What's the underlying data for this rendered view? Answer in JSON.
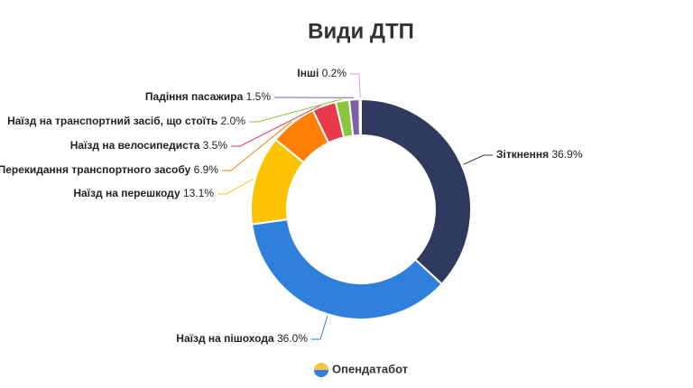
{
  "chart_data": {
    "type": "pie",
    "title": "Види ДТП",
    "categories": [
      "Зіткнення",
      "Наїзд на пішохода",
      "Наїзд на перешкоду",
      "Перекидання транспортного засобу",
      "Наїзд на велосипедиста",
      "Наїзд на транспортний засіб, що стоїть",
      "Падіння пасажира",
      "Інші"
    ],
    "values": [
      36.9,
      36.0,
      13.1,
      6.9,
      3.5,
      2.0,
      1.5,
      0.2
    ],
    "value_labels": [
      "36.9%",
      "36.0%",
      "13.1%",
      "6.9%",
      "3.5%",
      "2.0%",
      "1.5%",
      "0.2%"
    ],
    "colors": [
      "#2e3b5e",
      "#2f80dc",
      "#fdc202",
      "#fd7f03",
      "#e83a4a",
      "#8cc63f",
      "#7e5fa8",
      "#c9a0dc"
    ],
    "brand": "Опендатабот"
  }
}
